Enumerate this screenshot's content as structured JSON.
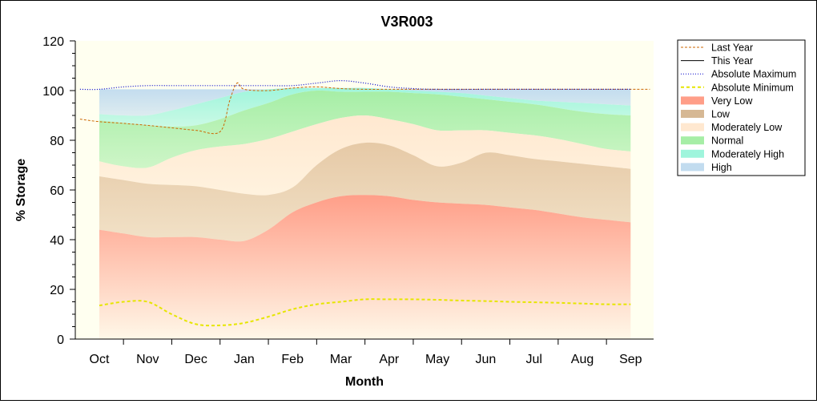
{
  "chart_data": {
    "type": "area",
    "title": "V3R003",
    "xlabel": "Month",
    "ylabel": "% Storage",
    "ylim": [
      0,
      120
    ],
    "yticks": [
      0,
      20,
      40,
      60,
      80,
      100,
      120
    ],
    "categories": [
      "Oct",
      "Nov",
      "Dec",
      "Jan",
      "Feb",
      "Mar",
      "Apr",
      "May",
      "Jun",
      "Jul",
      "Aug",
      "Sep"
    ],
    "x": [
      0,
      0.5,
      1,
      1.5,
      2,
      2.5,
      3,
      3.5,
      4,
      4.5,
      5,
      5.5,
      6,
      6.5,
      7,
      7.5,
      8,
      8.5,
      9,
      9.5,
      10,
      10.5,
      11
    ],
    "legend_position": "right",
    "bands": [
      {
        "name": "Very Low",
        "color": "#ff9e88",
        "values": [
          44,
          42.5,
          41,
          41,
          41,
          40,
          39.5,
          44,
          51,
          55,
          57.5,
          58,
          57.5,
          56,
          55,
          54.5,
          54,
          53,
          52,
          50.5,
          49,
          48,
          47
        ]
      },
      {
        "name": "Low",
        "color": "#e6c9a6",
        "values": [
          65.5,
          64,
          62.5,
          62,
          61.5,
          60,
          58.5,
          58,
          61,
          70,
          76.5,
          79,
          78,
          74,
          69.5,
          71,
          75,
          74,
          72.5,
          71.5,
          70.5,
          69.5,
          68.5
        ]
      },
      {
        "name": "Moderately Low",
        "color": "#ffe8d0",
        "values": [
          71.5,
          69.5,
          69,
          73,
          76,
          77.5,
          78.5,
          80.5,
          83.5,
          86.5,
          89,
          90,
          88.5,
          86.5,
          84,
          84,
          84,
          83,
          82,
          80.5,
          78.5,
          76.5,
          75.5
        ]
      },
      {
        "name": "Normal",
        "color": "#a6eea6",
        "values": [
          88,
          87,
          86,
          85.5,
          86,
          88.5,
          92,
          95,
          98.5,
          100,
          99.5,
          99.5,
          99.5,
          99,
          98.5,
          97.5,
          96.5,
          95.5,
          94.5,
          93,
          91.5,
          90.5,
          90
        ]
      },
      {
        "name": "Moderately High",
        "color": "#9ff5dc",
        "values": [
          90.5,
          90,
          90,
          92,
          94.5,
          97,
          99.5,
          100.5,
          101,
          101,
          101,
          101,
          100.5,
          100,
          99.5,
          99,
          98,
          97,
          96,
          95.5,
          95,
          94.5,
          94
        ]
      },
      {
        "name": "High",
        "color": "#c2dcef",
        "values": [
          100.5,
          100.5,
          100.5,
          100.5,
          100.5,
          100.5,
          100.5,
          100.5,
          100.5,
          100.5,
          100.5,
          100.5,
          100.5,
          100.5,
          100.5,
          100.5,
          100.5,
          100.5,
          100.5,
          100.5,
          100.5,
          100.5,
          100.5
        ]
      }
    ],
    "lines": [
      {
        "name": "Last Year",
        "color": "#cc6600",
        "dash": "3,2",
        "width": 1,
        "x": [
          -0.4,
          0,
          0.5,
          1,
          1.5,
          2,
          2.5,
          2.7,
          2.85,
          3,
          3.5,
          4,
          4.5,
          5,
          5.5,
          6,
          7,
          8,
          9,
          10,
          11.4
        ],
        "values": [
          88.5,
          87.5,
          86.8,
          86,
          85,
          84,
          83.5,
          96,
          103,
          100.5,
          100,
          101,
          101.5,
          100.8,
          100.5,
          100.5,
          100.5,
          100.5,
          100.5,
          100.5,
          100.5
        ]
      },
      {
        "name": "This Year",
        "color": "#000000",
        "dash": "",
        "width": 1,
        "x": [],
        "values": []
      },
      {
        "name": "Absolute Maximum",
        "color": "#0000cc",
        "dash": "1,2",
        "width": 1.2,
        "x": [
          -0.4,
          0,
          0.5,
          1,
          1.5,
          2,
          2.5,
          3,
          3.5,
          4,
          4.5,
          5,
          5.5,
          6,
          6.5,
          7,
          8,
          9,
          10,
          11
        ],
        "values": [
          100.5,
          100.5,
          101.5,
          102,
          102,
          102,
          102,
          102,
          102,
          102,
          103,
          104,
          103,
          101.5,
          100.8,
          100.5,
          100.5,
          100.5,
          100.5,
          100.5
        ]
      },
      {
        "name": "Absolute Minimum",
        "color": "#e6e600",
        "dash": "4,3",
        "width": 2,
        "x": [
          0,
          0.5,
          1,
          1.5,
          2,
          2.5,
          3,
          3.5,
          4,
          4.5,
          5,
          5.5,
          6,
          6.5,
          7,
          7.5,
          8,
          8.5,
          9,
          9.5,
          10,
          10.5,
          11
        ],
        "values": [
          13.5,
          15,
          15,
          10,
          6,
          5.5,
          6.5,
          9,
          12,
          14,
          15,
          16,
          16,
          16,
          15.8,
          15.5,
          15.3,
          15,
          14.8,
          14.6,
          14.3,
          14,
          14
        ]
      }
    ],
    "legend": [
      {
        "label": "Last Year",
        "kind": "line",
        "color": "#cc6600",
        "dash": "3,2"
      },
      {
        "label": "This Year",
        "kind": "line",
        "color": "#000000",
        "dash": ""
      },
      {
        "label": "Absolute Maximum",
        "kind": "line",
        "color": "#0000cc",
        "dash": "1,2"
      },
      {
        "label": "Absolute Minimum",
        "kind": "line",
        "color": "#e6e600",
        "dash": "4,3"
      },
      {
        "label": "Very Low",
        "kind": "fill",
        "color": "#ff9e88"
      },
      {
        "label": "Low",
        "kind": "fill",
        "color": "#d6b894"
      },
      {
        "label": "Moderately Low",
        "kind": "fill",
        "color": "#ffe8d0"
      },
      {
        "label": "Normal",
        "kind": "fill",
        "color": "#a6eea6"
      },
      {
        "label": "Moderately High",
        "kind": "fill",
        "color": "#9ff5dc"
      },
      {
        "label": "High",
        "kind": "fill",
        "color": "#c2dcef"
      }
    ]
  }
}
